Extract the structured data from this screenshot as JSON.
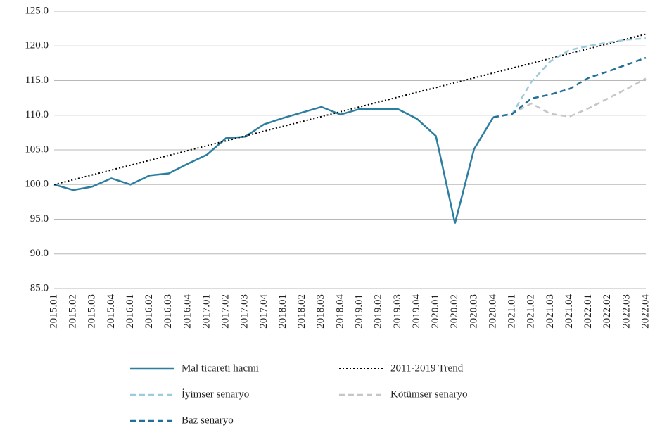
{
  "chart_data": {
    "type": "line",
    "categories": [
      "2015.01",
      "2015.02",
      "2015.03",
      "2015.04",
      "2016.01",
      "2016.02",
      "2016.03",
      "2016.04",
      "2017.01",
      "2017.02",
      "2017.03",
      "2017.04",
      "2018.01",
      "2018.02",
      "2018.03",
      "2018.04",
      "2019.01",
      "2019.02",
      "2019.03",
      "2019.04",
      "2020.01",
      "2020.02",
      "2020.03",
      "2020.04",
      "2021.01",
      "2021.02",
      "2021.03",
      "2021.04",
      "2022.01",
      "2022.02",
      "2022.03",
      "2022.04"
    ],
    "series": [
      {
        "name": "Mal ticareti hacmi",
        "color": "#2c7ea0",
        "style": "solid",
        "values": [
          100.0,
          99.2,
          99.7,
          100.9,
          100.0,
          101.3,
          101.6,
          103.0,
          104.3,
          106.7,
          106.9,
          108.7,
          109.6,
          110.4,
          111.2,
          110.1,
          110.9,
          110.9,
          110.9,
          109.5,
          107.0,
          94.4,
          105.1,
          109.7,
          null,
          null,
          null,
          null,
          null,
          null,
          null,
          null
        ]
      },
      {
        "name": "2011-2019 Trend",
        "color": "#000000",
        "style": "dotted",
        "values": [
          100.0,
          100.7,
          101.4,
          102.1,
          102.8,
          103.5,
          104.2,
          104.9,
          105.6,
          106.3,
          107.0,
          107.7,
          108.4,
          109.1,
          109.8,
          110.5,
          111.2,
          111.9,
          112.6,
          113.3,
          114.0,
          114.7,
          115.4,
          116.1,
          116.8,
          117.5,
          118.2,
          118.9,
          119.6,
          120.3,
          121.0,
          121.7
        ]
      },
      {
        "name": "İyimser senaryo",
        "color": "#9ccbdb",
        "style": "dashed",
        "values": [
          null,
          null,
          null,
          null,
          null,
          null,
          null,
          null,
          null,
          null,
          null,
          null,
          null,
          null,
          null,
          null,
          null,
          null,
          null,
          null,
          null,
          null,
          null,
          109.7,
          110.2,
          114.8,
          117.8,
          119.4,
          120.0,
          120.5,
          120.9,
          121.1
        ]
      },
      {
        "name": "Kötümser senaryo",
        "color": "#c6c6c6",
        "style": "dashed",
        "values": [
          null,
          null,
          null,
          null,
          null,
          null,
          null,
          null,
          null,
          null,
          null,
          null,
          null,
          null,
          null,
          null,
          null,
          null,
          null,
          null,
          null,
          null,
          null,
          109.7,
          110.2,
          111.7,
          110.2,
          109.8,
          111.0,
          112.4,
          113.8,
          115.3
        ]
      },
      {
        "name": "Baz senaryo",
        "color": "#236f96",
        "style": "dashed",
        "values": [
          null,
          null,
          null,
          null,
          null,
          null,
          null,
          null,
          null,
          null,
          null,
          null,
          null,
          null,
          null,
          null,
          null,
          null,
          null,
          null,
          null,
          null,
          null,
          109.7,
          110.2,
          112.4,
          113.0,
          113.8,
          115.4,
          116.3,
          117.3,
          118.3
        ]
      }
    ],
    "ylim": [
      85,
      125
    ],
    "yticks": [
      {
        "value": 85,
        "label": "85.0"
      },
      {
        "value": 90,
        "label": "90.0"
      },
      {
        "value": 95,
        "label": "95.0"
      },
      {
        "value": 100,
        "label": "100.0"
      },
      {
        "value": 105,
        "label": "105.0"
      },
      {
        "value": 110,
        "label": "110.0"
      },
      {
        "value": 115,
        "label": "115.0"
      },
      {
        "value": 120,
        "label": "120.0"
      },
      {
        "value": 125,
        "label": "125.0"
      }
    ],
    "grid": true,
    "legend": "bottom"
  }
}
